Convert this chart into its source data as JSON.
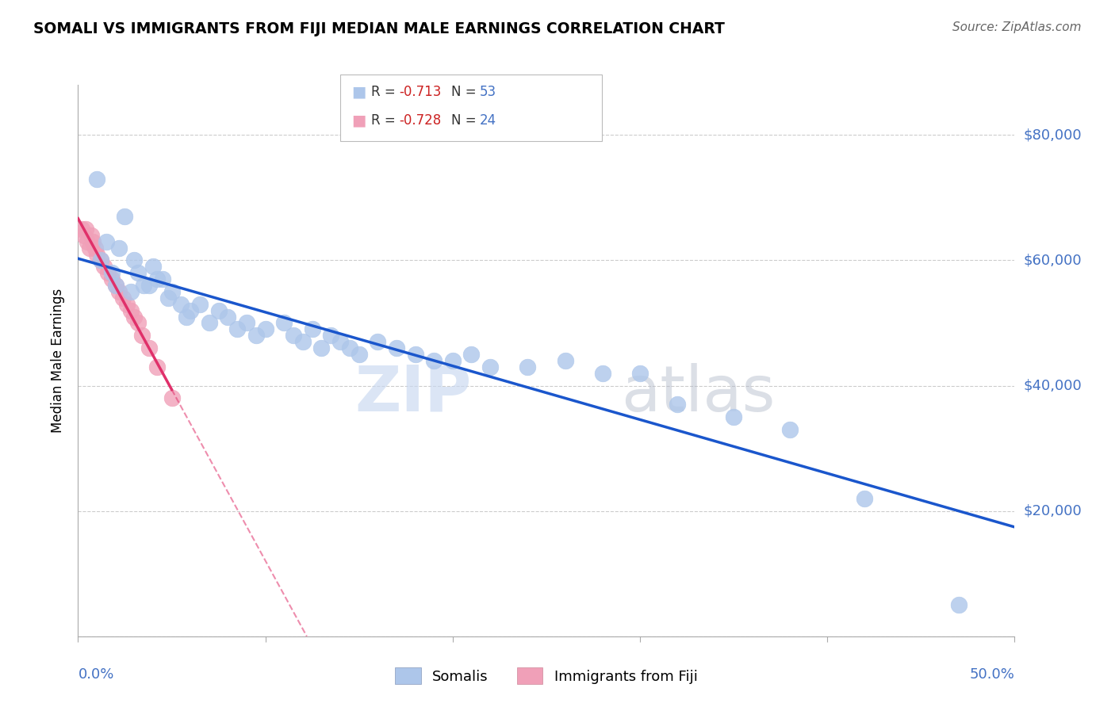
{
  "title": "SOMALI VS IMMIGRANTS FROM FIJI MEDIAN MALE EARNINGS CORRELATION CHART",
  "source": "Source: ZipAtlas.com",
  "ylabel": "Median Male Earnings",
  "xlim": [
    0.0,
    0.5
  ],
  "ylim": [
    0,
    88000
  ],
  "somali_R": -0.713,
  "somali_N": 53,
  "fiji_R": -0.728,
  "fiji_N": 24,
  "somali_color": "#adc6ea",
  "somali_line_color": "#1a56cc",
  "fiji_color": "#f0a0b8",
  "fiji_line_color": "#e0306a",
  "ytick_positions": [
    0,
    20000,
    40000,
    60000,
    80000
  ],
  "ytick_labels": [
    "",
    "$20,000",
    "$40,000",
    "$60,000",
    "$80,000"
  ],
  "somali_x": [
    0.01,
    0.025,
    0.015,
    0.012,
    0.018,
    0.022,
    0.035,
    0.03,
    0.04,
    0.045,
    0.028,
    0.038,
    0.032,
    0.048,
    0.02,
    0.055,
    0.06,
    0.05,
    0.065,
    0.042,
    0.058,
    0.07,
    0.075,
    0.08,
    0.085,
    0.09,
    0.095,
    0.1,
    0.11,
    0.115,
    0.12,
    0.125,
    0.13,
    0.135,
    0.14,
    0.145,
    0.15,
    0.16,
    0.17,
    0.18,
    0.19,
    0.2,
    0.21,
    0.22,
    0.24,
    0.26,
    0.28,
    0.3,
    0.32,
    0.35,
    0.38,
    0.42,
    0.47
  ],
  "somali_y": [
    73000,
    67000,
    63000,
    60000,
    58000,
    62000,
    56000,
    60000,
    59000,
    57000,
    55000,
    56000,
    58000,
    54000,
    56000,
    53000,
    52000,
    55000,
    53000,
    57000,
    51000,
    50000,
    52000,
    51000,
    49000,
    50000,
    48000,
    49000,
    50000,
    48000,
    47000,
    49000,
    46000,
    48000,
    47000,
    46000,
    45000,
    47000,
    46000,
    45000,
    44000,
    44000,
    45000,
    43000,
    43000,
    44000,
    42000,
    42000,
    37000,
    35000,
    33000,
    22000,
    5000
  ],
  "fiji_x": [
    0.002,
    0.003,
    0.004,
    0.005,
    0.006,
    0.007,
    0.008,
    0.009,
    0.01,
    0.012,
    0.014,
    0.016,
    0.018,
    0.02,
    0.022,
    0.024,
    0.026,
    0.028,
    0.03,
    0.032,
    0.034,
    0.038,
    0.042,
    0.05
  ],
  "fiji_y": [
    65000,
    64000,
    65000,
    63000,
    62000,
    64000,
    63000,
    62000,
    61000,
    60000,
    59000,
    58000,
    57000,
    56000,
    55000,
    54000,
    53000,
    52000,
    51000,
    50000,
    48000,
    46000,
    43000,
    38000
  ]
}
